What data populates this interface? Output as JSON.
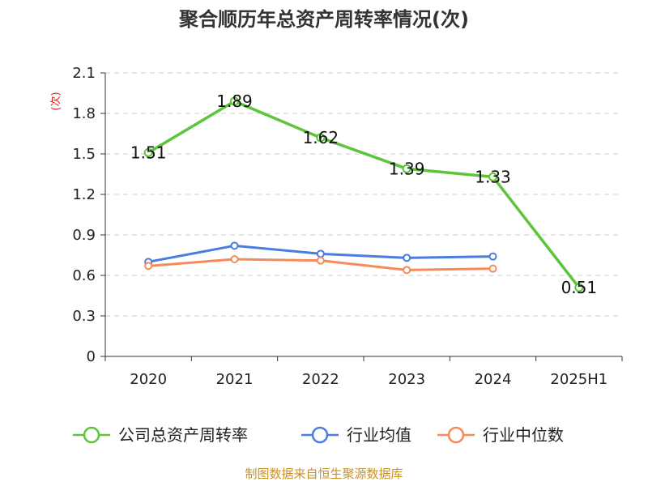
{
  "chart_data": {
    "type": "line",
    "title": "聚合顺历年总资产周转率情况(次)",
    "ylabel": "(次)",
    "xlabel": "",
    "categories": [
      "2020",
      "2021",
      "2022",
      "2023",
      "2024",
      "2025H1"
    ],
    "ylim": [
      0,
      2.1
    ],
    "yticks": [
      "0",
      "0.3",
      "0.6",
      "0.9",
      "1.2",
      "1.5",
      "1.8",
      "2.1"
    ],
    "grid": true,
    "legend_position": "bottom",
    "series": [
      {
        "name": "公司总资产周转率",
        "color": "#5ec43a",
        "values": [
          1.51,
          1.89,
          1.62,
          1.39,
          1.33,
          0.51
        ],
        "labels": [
          "1.51",
          "1.89",
          "1.62",
          "1.39",
          "1.33",
          "0.51"
        ]
      },
      {
        "name": "行业均值",
        "color": "#4a7de0",
        "values": [
          0.7,
          0.82,
          0.76,
          0.73,
          0.74,
          null
        ]
      },
      {
        "name": "行业中位数",
        "color": "#f58b5a",
        "values": [
          0.67,
          0.72,
          0.71,
          0.64,
          0.65,
          null
        ]
      }
    ],
    "source": "制图数据来自恒生聚源数据库"
  }
}
